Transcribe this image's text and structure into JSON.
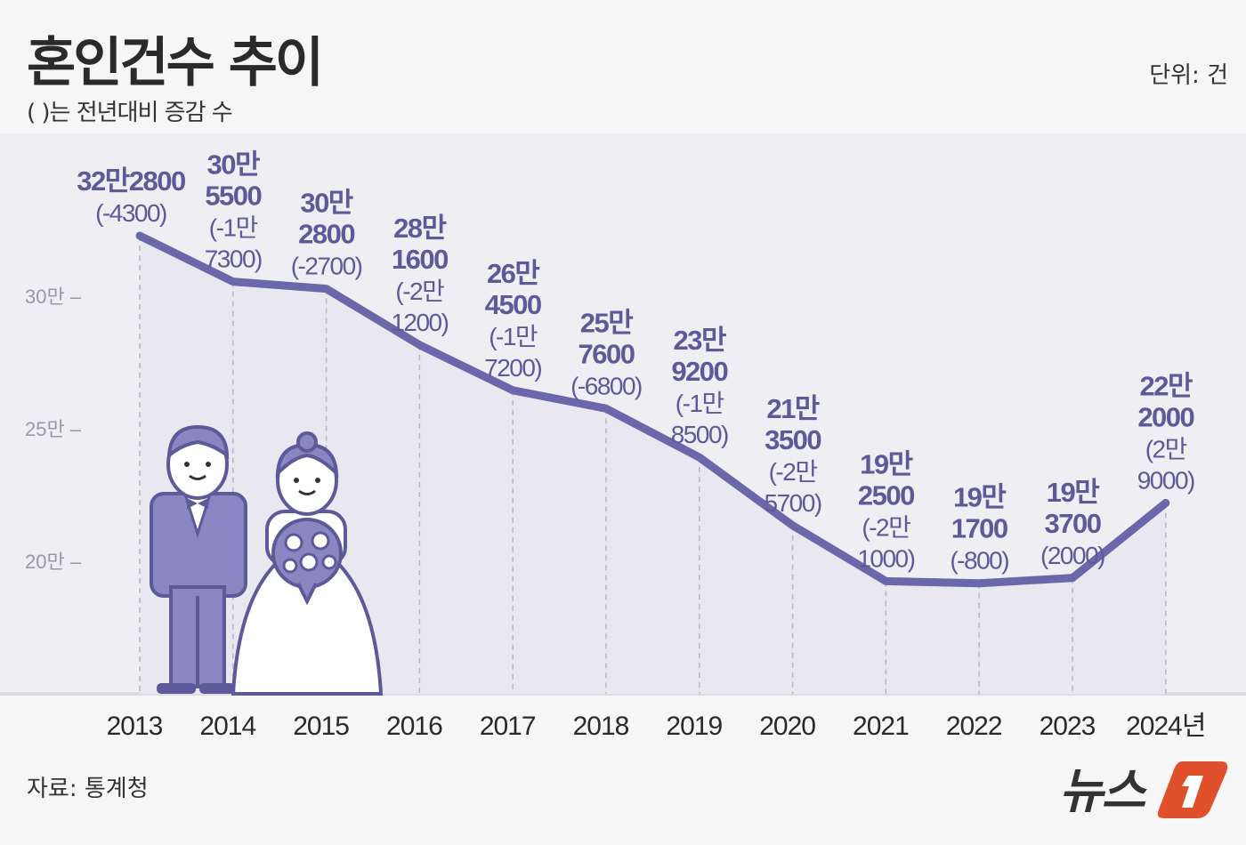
{
  "title": "혼인건수 추이",
  "subtitle": "( )는 전년대비 증감 수",
  "unit_label": "단위: 건",
  "source": "자료: 통계청",
  "logo_text": "뉴스1",
  "colors": {
    "line": "#6b67ab",
    "label": "#5e5a9a",
    "fill": "#e9e7f0",
    "logo_orange": "#e0512b"
  },
  "chart_data": {
    "type": "line",
    "title": "혼인건수 추이",
    "ylim": [
      150000,
      330000
    ],
    "y_ticks": [
      {
        "value": 300000,
        "label": "30만"
      },
      {
        "value": 250000,
        "label": "25만"
      },
      {
        "value": 200000,
        "label": "20만"
      }
    ],
    "categories": [
      "2013",
      "2014",
      "2015",
      "2016",
      "2017",
      "2018",
      "2019",
      "2020",
      "2021",
      "2022",
      "2023",
      "2024년"
    ],
    "values": [
      322800,
      305500,
      302800,
      281600,
      264500,
      257600,
      239200,
      213500,
      192500,
      191700,
      193700,
      222000
    ],
    "changes": [
      -4300,
      -17300,
      -2700,
      -21200,
      -17200,
      -6800,
      -18500,
      -25700,
      -21000,
      -800,
      2000,
      29000
    ],
    "value_labels": [
      [
        "32만2800",
        "(-4300)"
      ],
      [
        "30만",
        "5500",
        "(-1만",
        "7300)"
      ],
      [
        "30만",
        "2800",
        "(-2700)"
      ],
      [
        "28만",
        "1600",
        "(-2만",
        "1200)"
      ],
      [
        "26만",
        "4500",
        "(-1만",
        "7200)"
      ],
      [
        "25만",
        "7600",
        "(-6800)"
      ],
      [
        "23만",
        "9200",
        "(-1만",
        "8500)"
      ],
      [
        "21만",
        "3500",
        "(-2만",
        "5700)"
      ],
      [
        "19만",
        "2500",
        "(-2만",
        "1000)"
      ],
      [
        "19만",
        "1700",
        "(-800)"
      ],
      [
        "19만",
        "3700",
        "(2000)"
      ],
      [
        "22만",
        "2000",
        "(2만",
        "9000)"
      ]
    ],
    "grid": false,
    "legend": "none"
  }
}
